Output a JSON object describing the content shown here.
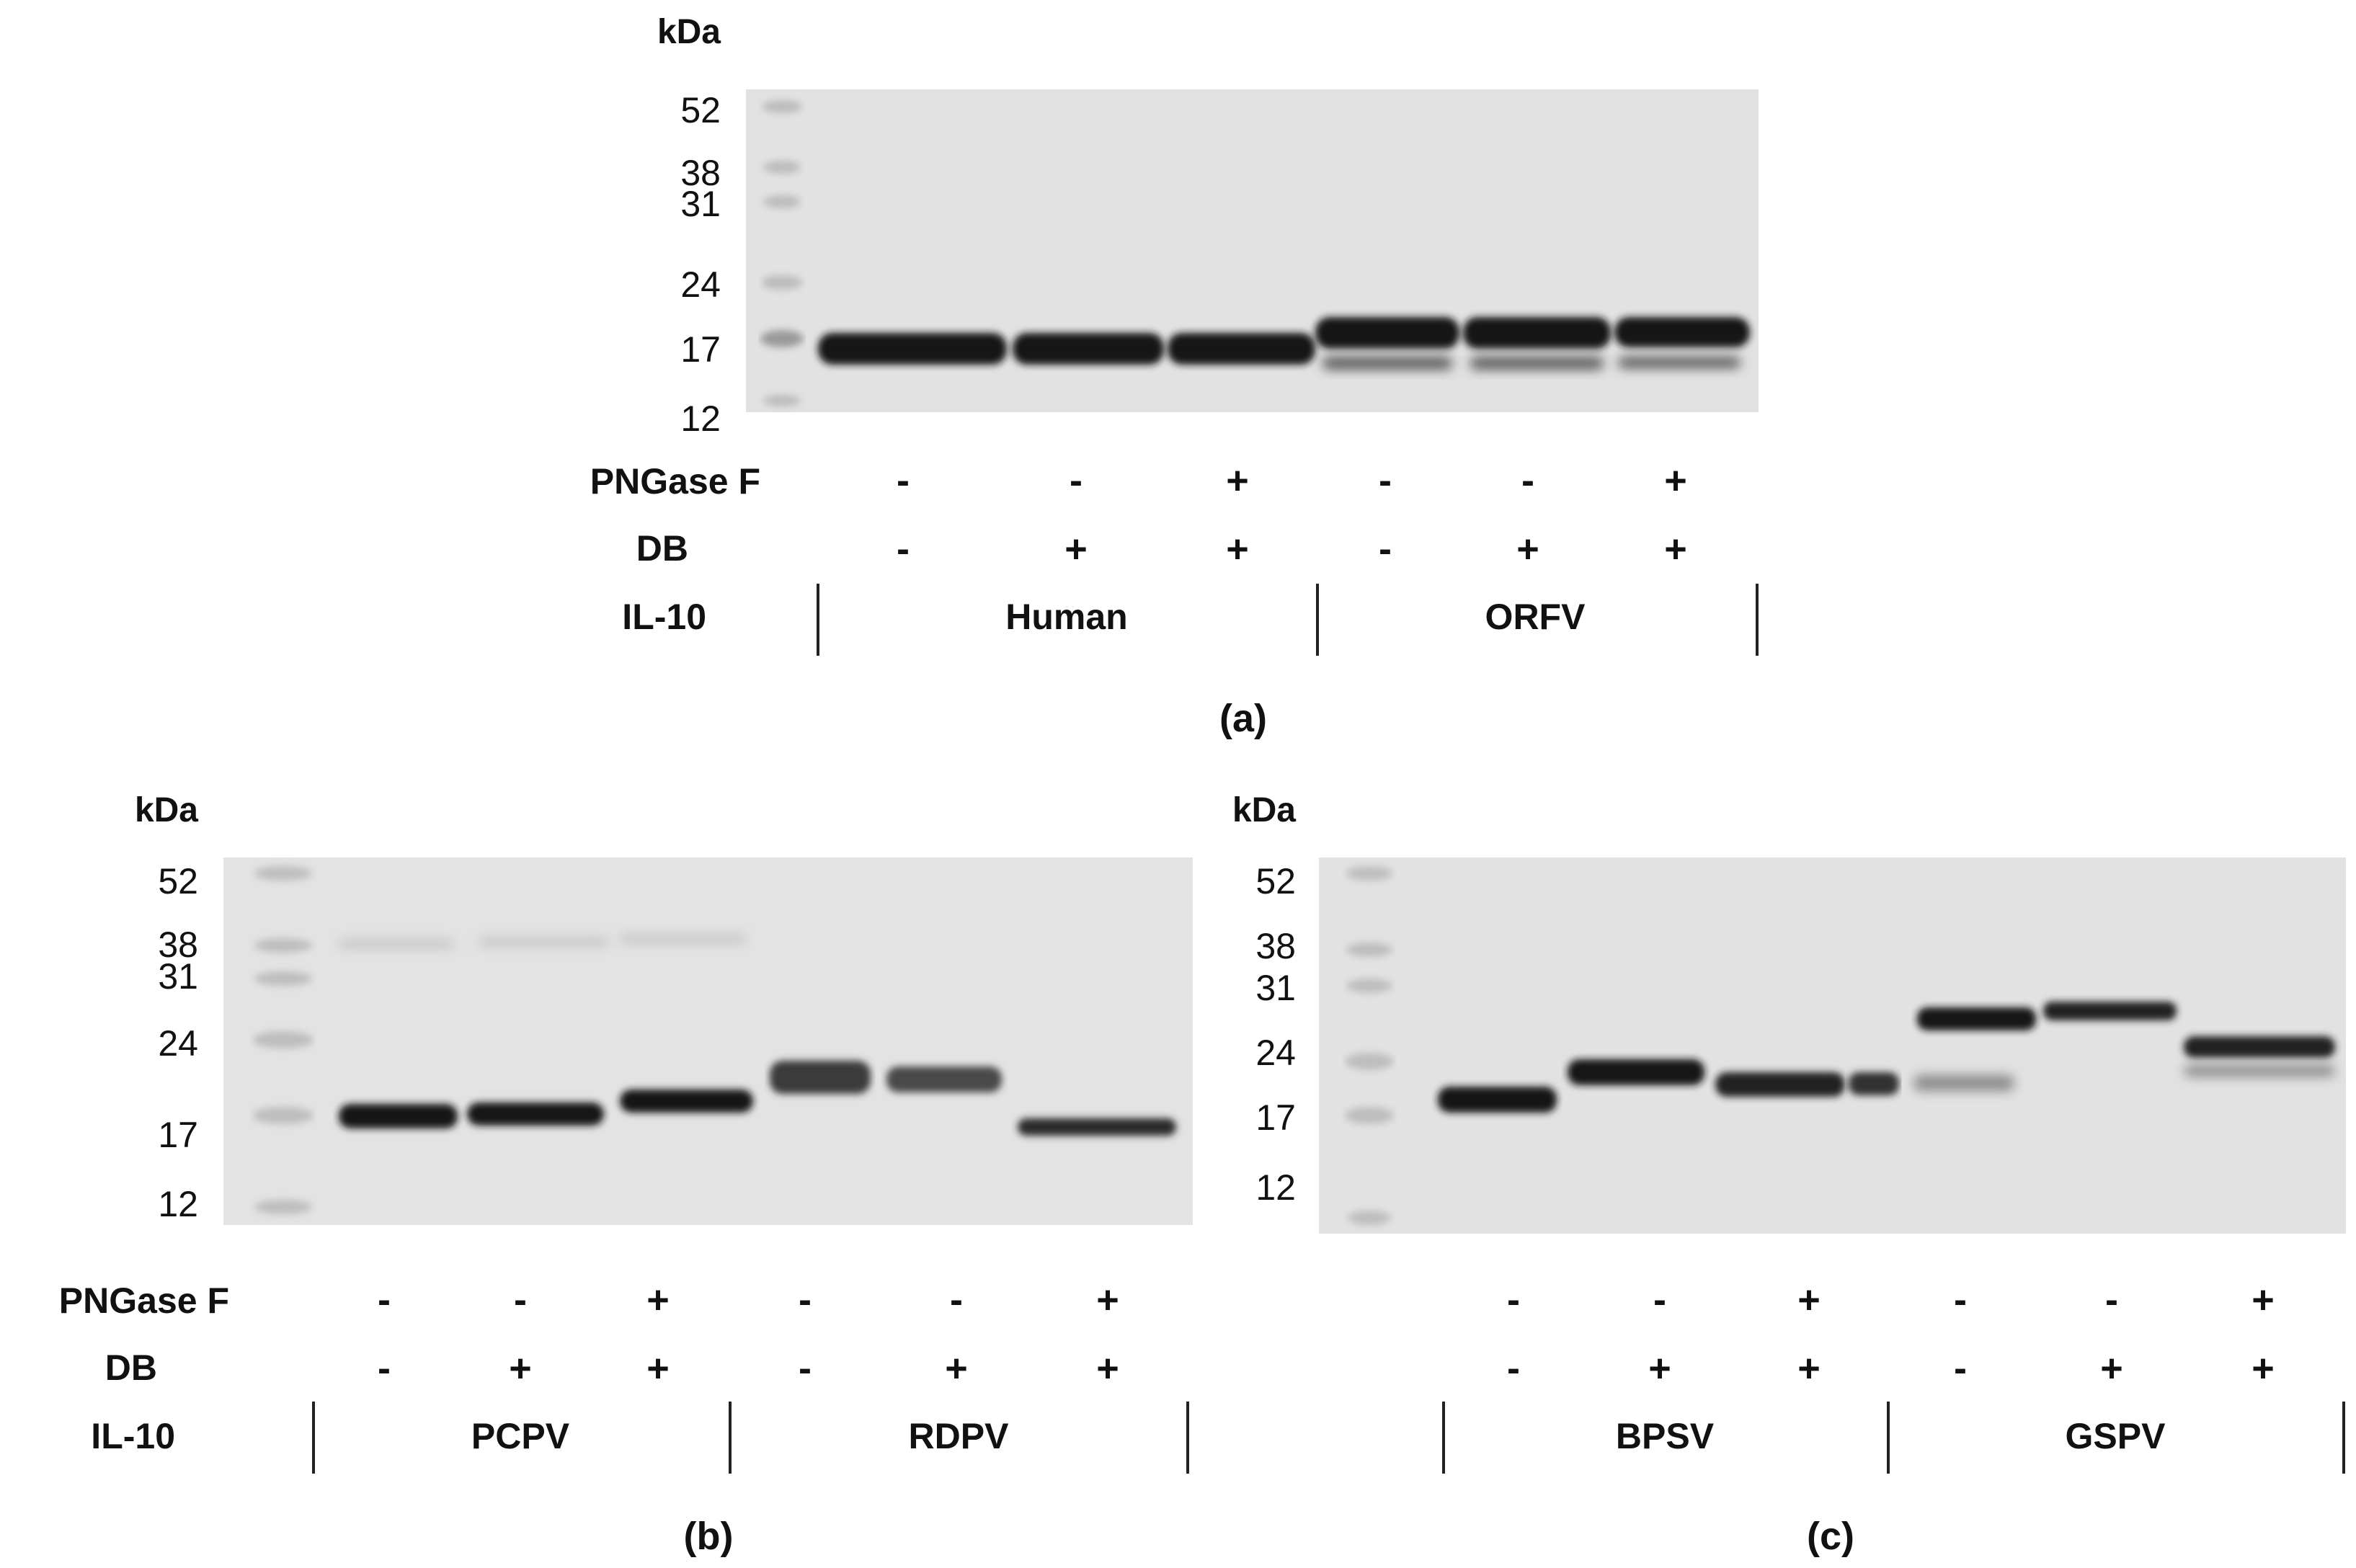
{
  "panels": [
    {
      "id": "a",
      "caption": "(a)",
      "unit": "kDa",
      "markers": [
        "52",
        "38",
        "31",
        "24",
        "17",
        "12"
      ],
      "rows": [
        {
          "label": "PNGase F",
          "values": [
            "-",
            "-",
            "+",
            "-",
            "-",
            "+"
          ]
        },
        {
          "label": "DB",
          "values": [
            "-",
            "+",
            "+",
            "-",
            "+",
            "+"
          ]
        }
      ],
      "il10": {
        "label": "IL-10",
        "groups": [
          "Human",
          "ORFV"
        ]
      }
    },
    {
      "id": "b",
      "caption": "(b)",
      "unit": "kDa",
      "markers": [
        "52",
        "38",
        "31",
        "24",
        "17",
        "12"
      ],
      "rows": [
        {
          "label": "PNGase F",
          "values": [
            "-",
            "-",
            "+",
            "-",
            "-",
            "+"
          ]
        },
        {
          "label": "DB",
          "values": [
            "-",
            "+",
            "+",
            "-",
            "+",
            "+"
          ]
        }
      ],
      "il10": {
        "label": "IL-10",
        "groups": [
          "PCPV",
          "RDPV"
        ]
      }
    },
    {
      "id": "c",
      "caption": "(c)",
      "unit": "kDa",
      "markers": [
        "52",
        "38",
        "31",
        "24",
        "17",
        "12"
      ],
      "rows": [
        {
          "values": [
            "-",
            "-",
            "+",
            "-",
            "-",
            "+"
          ]
        },
        {
          "values": [
            "-",
            "+",
            "+",
            "-",
            "+",
            "+"
          ]
        }
      ],
      "il10": {
        "groups": [
          "BPSV",
          "GSPV"
        ]
      }
    }
  ],
  "colors": {
    "membrane": "#e1e1e1",
    "band": "#141414",
    "ladder": "#bdbdbd",
    "text": "#111111",
    "divider": "#222222"
  }
}
